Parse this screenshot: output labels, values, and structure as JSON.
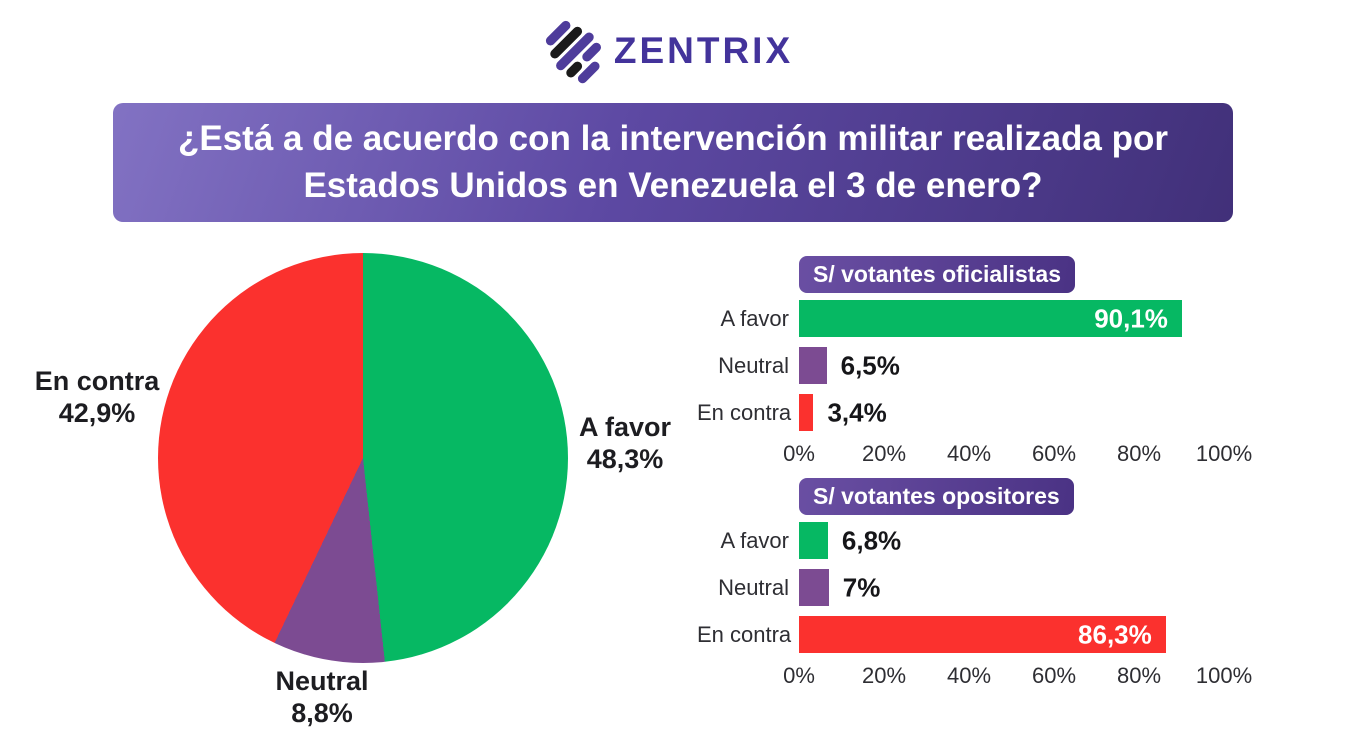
{
  "brand": {
    "name": "ZENTRIX"
  },
  "question_banner": {
    "line1": "¿Está a de acuerdo con la intervención militar realizada por",
    "line2": "Estados Unidos en Venezuela el 3 de enero?"
  },
  "colors": {
    "green": "#06B863",
    "red": "#FB312E",
    "purple": "#7C4B92",
    "banner_light": "#8272C3",
    "banner_dark": "#413079",
    "badge_light": "#6A4FA3",
    "badge_dark": "#4A3284",
    "logo_indigo": "#43339B",
    "logo_black": "#1A1A1A"
  },
  "chart_data": [
    {
      "type": "pie",
      "title": "",
      "labels": [
        "A favor",
        "Neutral",
        "En contra"
      ],
      "values": [
        48.3,
        8.8,
        42.9
      ],
      "display_values": [
        "48,3%",
        "8,8%",
        "42,9%"
      ],
      "colors": [
        "#06B863",
        "#7C4B92",
        "#FB312E"
      ],
      "start_angle": "top",
      "direction": "clockwise"
    },
    {
      "type": "bar",
      "orientation": "horizontal",
      "title": "S/ votantes oficialistas",
      "categories": [
        "A favor",
        "Neutral",
        "En contra"
      ],
      "values": [
        90.1,
        6.5,
        3.4
      ],
      "display_values": [
        "90,1%",
        "6,5%",
        "3,4%"
      ],
      "colors": [
        "#06B863",
        "#7C4B92",
        "#FB312E"
      ],
      "x_ticks": [
        "0%",
        "20%",
        "40%",
        "60%",
        "80%",
        "100%"
      ],
      "xlim": [
        0,
        100
      ],
      "grid": false,
      "legend": false
    },
    {
      "type": "bar",
      "orientation": "horizontal",
      "title": "S/ votantes opositores",
      "categories": [
        "A favor",
        "Neutral",
        "En contra"
      ],
      "values": [
        6.8,
        7,
        86.3
      ],
      "display_values": [
        "6,8%",
        "7%",
        "86,3%"
      ],
      "colors": [
        "#06B863",
        "#7C4B92",
        "#FB312E"
      ],
      "x_ticks": [
        "0%",
        "20%",
        "40%",
        "60%",
        "80%",
        "100%"
      ],
      "xlim": [
        0,
        100
      ],
      "grid": false,
      "legend": false
    }
  ]
}
